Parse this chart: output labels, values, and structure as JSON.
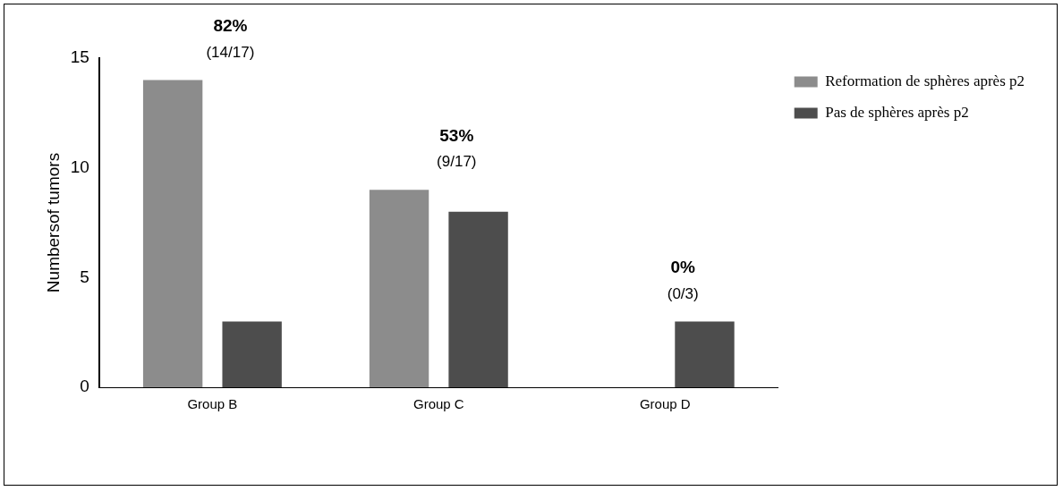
{
  "chart_data": {
    "type": "bar",
    "ylabel": "Numbersof tumors",
    "categories": [
      "Group B",
      "Group C",
      "Group D"
    ],
    "series": [
      {
        "name": "Reformation de sphères après p2",
        "color": "#8c8c8c",
        "values": [
          14,
          9,
          0
        ]
      },
      {
        "name": "Pas de sphères après p2",
        "color": "#4d4d4d",
        "values": [
          3,
          8,
          3
        ]
      }
    ],
    "ylim": [
      0,
      15
    ],
    "yticks": [
      0,
      5,
      10,
      15
    ],
    "grid": false,
    "legend": "top right",
    "annotations": [
      "82%",
      "(14/17)",
      "53%",
      "(9/17)",
      "0%",
      "(0/3)"
    ]
  }
}
